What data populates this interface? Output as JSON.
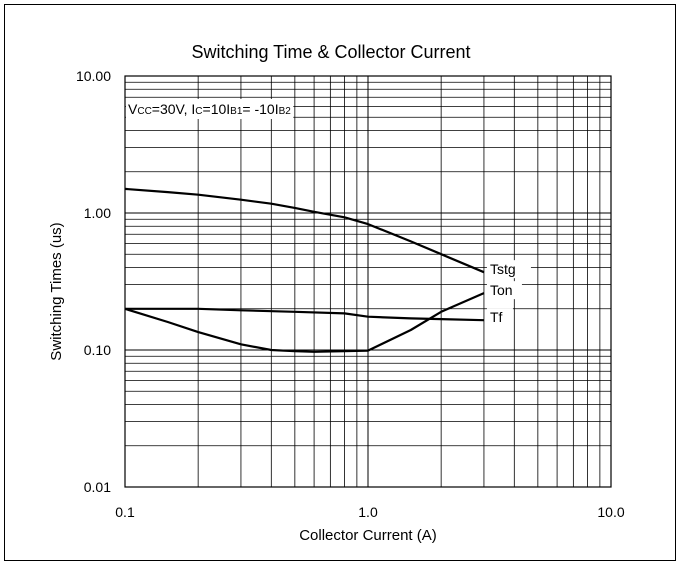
{
  "chart_data": {
    "type": "line",
    "title": "Switching Time & Collector Current",
    "xlabel": "Collector Current (A)",
    "ylabel": "Switching Times (us)",
    "x_scale": "log",
    "y_scale": "log",
    "xlim": [
      0.1,
      10.0
    ],
    "ylim": [
      0.01,
      10.0
    ],
    "x_ticks": [
      "0.1",
      "1.0",
      "10.0"
    ],
    "y_ticks": [
      "10.00",
      "1.00",
      "0.10",
      "0.01"
    ],
    "grid": true,
    "annotation": {
      "p1_main": "V",
      "p1_sub": "CC",
      "p2_main": "=30V, I",
      "p2_sub": "C",
      "p3_main": "=10I",
      "p3_sub": "B1",
      "p4_main": "= -10I",
      "p4_sub": "B2"
    },
    "series": [
      {
        "name": "Tstg",
        "x": [
          0.1,
          0.15,
          0.2,
          0.3,
          0.4,
          0.5,
          0.6,
          0.8,
          1.0,
          1.5,
          2.0,
          3.0
        ],
        "y": [
          1.5,
          1.42,
          1.36,
          1.25,
          1.17,
          1.09,
          1.02,
          0.93,
          0.83,
          0.62,
          0.5,
          0.37
        ]
      },
      {
        "name": "Ton",
        "x": [
          0.1,
          0.15,
          0.2,
          0.3,
          0.4,
          0.5,
          0.6,
          0.8,
          1.0,
          1.5,
          2.0,
          3.0
        ],
        "y": [
          0.2,
          0.16,
          0.135,
          0.11,
          0.1,
          0.098,
          0.097,
          0.098,
          0.099,
          0.14,
          0.19,
          0.26
        ]
      },
      {
        "name": "Tf",
        "x": [
          0.1,
          0.2,
          0.3,
          0.5,
          0.8,
          1.0,
          1.5,
          2.0,
          3.0
        ],
        "y": [
          0.2,
          0.2,
          0.195,
          0.19,
          0.185,
          0.175,
          0.17,
          0.168,
          0.165
        ]
      }
    ]
  }
}
